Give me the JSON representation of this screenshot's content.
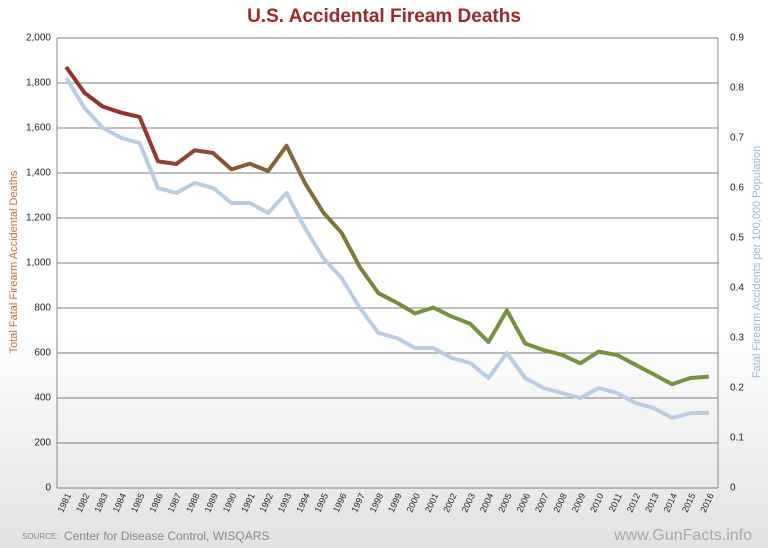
{
  "chart_data": {
    "type": "line",
    "title": "U.S. Accidental Fiream Deaths",
    "ylabel": "Total Fatal Firearm Accidental Deaths",
    "y2label": "Fatal Firearm Accidents per 100,000 Population",
    "source_prefix": "SOURCE:",
    "source": "Center for Disease Control, WISQARS",
    "watermark": "www.GunFacts.info",
    "categories": [
      "1981",
      "1982",
      "1983",
      "1984",
      "1985",
      "1986",
      "1987",
      "1988",
      "1989",
      "1990",
      "1991",
      "1992",
      "1993",
      "1994",
      "1995",
      "1996",
      "1997",
      "1998",
      "1999",
      "2000",
      "2001",
      "2002",
      "2003",
      "2004",
      "2005",
      "2006",
      "2007",
      "2008",
      "2009",
      "2010",
      "2011",
      "2012",
      "2013",
      "2014",
      "2015",
      "2016"
    ],
    "series": [
      {
        "name": "Total Fatal Firearm Accidental Deaths",
        "gradient": [
          "#9b2f2c",
          "#76923c"
        ],
        "axis": "y",
        "values": [
          1871,
          1756,
          1695,
          1668,
          1649,
          1452,
          1440,
          1501,
          1489,
          1416,
          1441,
          1409,
          1521,
          1356,
          1225,
          1134,
          981,
          866,
          824,
          776,
          802,
          762,
          730,
          649,
          789,
          642,
          613,
          592,
          554,
          606,
          591,
          548,
          505,
          461,
          489,
          495
        ]
      },
      {
        "name": "Fatal Firearm Accidents per 100,000 Population",
        "color": "#b9cde5",
        "axis": "y2",
        "values": [
          0.82,
          0.76,
          0.72,
          0.7,
          0.69,
          0.6,
          0.59,
          0.61,
          0.6,
          0.57,
          0.57,
          0.55,
          0.59,
          0.52,
          0.46,
          0.42,
          0.36,
          0.31,
          0.3,
          0.28,
          0.28,
          0.26,
          0.25,
          0.22,
          0.27,
          0.22,
          0.2,
          0.19,
          0.18,
          0.2,
          0.19,
          0.17,
          0.16,
          0.14,
          0.15,
          0.15
        ]
      }
    ],
    "ylim": [
      0,
      2000
    ],
    "yticks": [
      0,
      200,
      400,
      600,
      800,
      {
        "value": 1000,
        "label": "1,000"
      },
      {
        "value": 1200,
        "label": "1,200"
      },
      {
        "value": 1400,
        "label": "1,400"
      },
      {
        "value": 1600,
        "label": "1,600"
      },
      {
        "value": 1800,
        "label": "1,800"
      },
      {
        "value": 2000,
        "label": "2,000"
      }
    ],
    "y2lim": [
      0,
      0.9
    ],
    "y2ticks": [
      0,
      0.1,
      0.2,
      0.3,
      0.4,
      0.5,
      0.6,
      0.7,
      0.8,
      0.9
    ],
    "grid": true
  }
}
